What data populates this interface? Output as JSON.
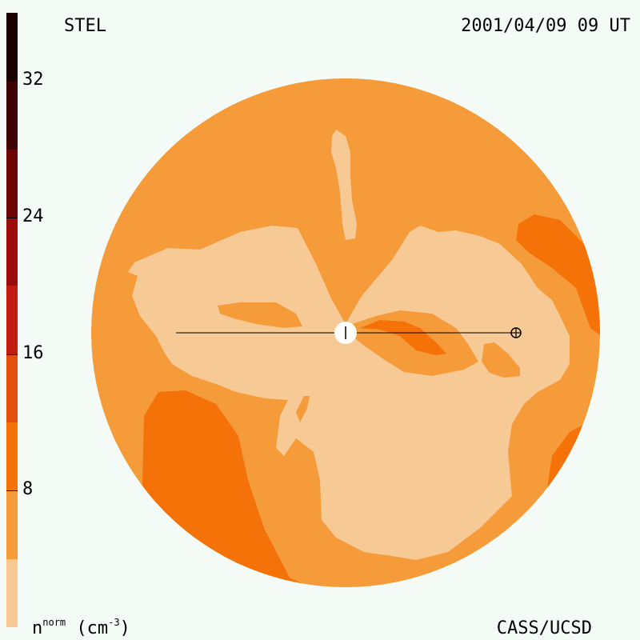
{
  "header": {
    "source": "STEL",
    "timestamp": "2001/04/09 09 UT"
  },
  "footer": {
    "credit": "CASS/UCSD"
  },
  "color_scale": {
    "unit_base": "n",
    "unit_sup": "norm",
    "unit_rest": " (cm",
    "unit_exp": "-3",
    "unit_close": ")",
    "ticks": [
      {
        "label": "8",
        "value": 8
      },
      {
        "label": "16",
        "value": 16
      },
      {
        "label": "24",
        "value": 24
      },
      {
        "label": "32",
        "value": 32
      }
    ],
    "bands": [
      {
        "from": 0,
        "to": 4,
        "color": "#f7c995"
      },
      {
        "from": 4,
        "to": 8,
        "color": "#f59b3a"
      },
      {
        "from": 8,
        "to": 12,
        "color": "#f47208"
      },
      {
        "from": 12,
        "to": 16,
        "color": "#e24f0e"
      },
      {
        "from": 16,
        "to": 20,
        "color": "#c21b10"
      },
      {
        "from": 20,
        "to": 24,
        "color": "#9b0c0a"
      },
      {
        "from": 24,
        "to": 28,
        "color": "#6e0505"
      },
      {
        "from": 28,
        "to": 32,
        "color": "#3f0202"
      },
      {
        "from": 32,
        "to": 36,
        "color": "#1c0000"
      }
    ]
  }
}
